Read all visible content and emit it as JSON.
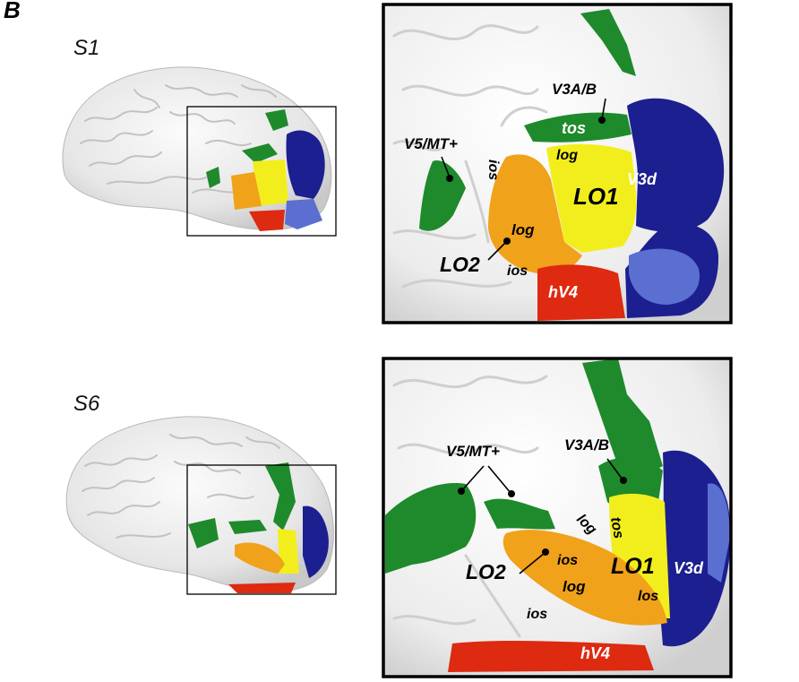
{
  "figure": {
    "panel_letter": "B",
    "subjects": [
      {
        "id": "S1",
        "labels": {
          "v3ab": "V3A/B",
          "tos": "tos",
          "v5mt": "V5/MT+",
          "ios_a": "ios",
          "log_a": "log",
          "lo1": "LO1",
          "v3d": "V3d",
          "log_b": "log",
          "lo2": "LO2",
          "ios_b": "ios",
          "hv4": "hV4"
        }
      },
      {
        "id": "S6",
        "labels": {
          "v3ab": "V3A/B",
          "v5mt": "V5/MT+",
          "log_a": "log",
          "tos": "tos",
          "ios_a": "ios",
          "lo1": "LO1",
          "v3d": "V3d",
          "lo2": "LO2",
          "log_b": "log",
          "ios_b": "ios",
          "los": "los",
          "hv4": "hV4"
        }
      }
    ],
    "colors": {
      "cortex": "#e9e9e9",
      "green": "#1e8a2c",
      "blue": "#1c1f8f",
      "yellow": "#f2ee1e",
      "orange": "#f0a21a",
      "red": "#dd2a10",
      "light_blue": "#5a6fcf"
    }
  }
}
